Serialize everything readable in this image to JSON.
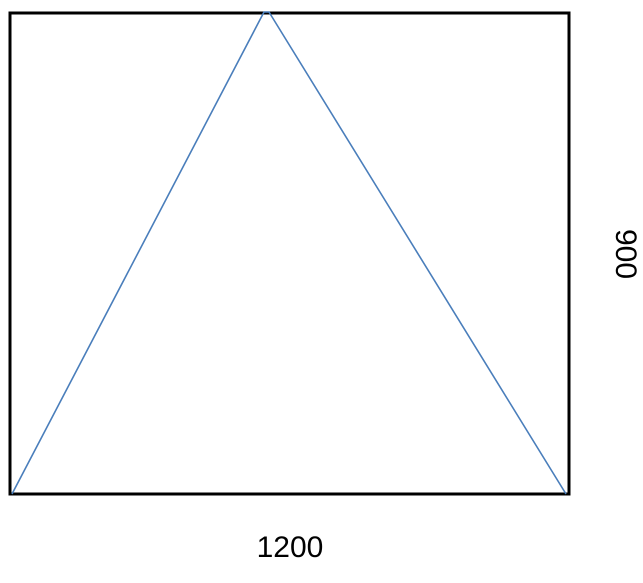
{
  "labels": {
    "width": "1200",
    "height": "900"
  },
  "colors": {
    "frame": "#000000",
    "triangle": "#4A7EBB",
    "background": "#FFFFFF",
    "label": "#000000"
  }
}
